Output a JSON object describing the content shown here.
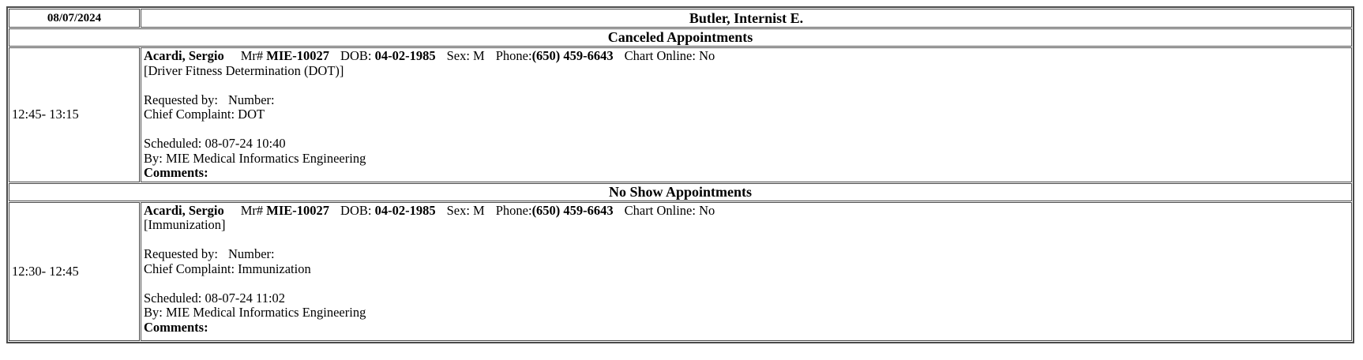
{
  "report": {
    "date": "08/07/2024",
    "provider": "Butler, Internist E.",
    "sections": [
      {
        "title": "Canceled Appointments",
        "appointments": [
          {
            "time": "12:45- 13:15",
            "patient": {
              "name": "Acardi, Sergio",
              "mr_label": "Mr#",
              "mr_value": "MIE-10027",
              "dob_label": "DOB:",
              "dob_value": "04-02-1985",
              "sex": "Sex: M",
              "phone_label": "Phone:",
              "phone_value": "(650) 459-6643",
              "chart_online": "Chart Online: No"
            },
            "reason": "[Driver Fitness Determination (DOT)]",
            "requested_by_label": "Requested by:",
            "number_label": "Number:",
            "chief_complaint": "Chief Complaint: DOT",
            "scheduled": "Scheduled: 08-07-24 10:40",
            "scheduled_by": "By: MIE Medical Informatics Engineering",
            "comments_label": "Comments:"
          }
        ]
      },
      {
        "title": "No Show Appointments",
        "appointments": [
          {
            "time": "12:30- 12:45",
            "patient": {
              "name": "Acardi, Sergio",
              "mr_label": "Mr#",
              "mr_value": "MIE-10027",
              "dob_label": "DOB:",
              "dob_value": "04-02-1985",
              "sex": "Sex: M",
              "phone_label": "Phone:",
              "phone_value": "(650) 459-6643",
              "chart_online": "Chart Online: No"
            },
            "reason": "[Immunization]",
            "requested_by_label": "Requested by:",
            "number_label": "Number:",
            "chief_complaint": "Chief Complaint: Immunization",
            "scheduled": "Scheduled: 08-07-24 11:02",
            "scheduled_by": "By: MIE Medical Informatics Engineering",
            "comments_label": "Comments:"
          }
        ]
      }
    ]
  },
  "colors": {
    "border": "#4a4a4a",
    "text": "#000000",
    "background": "#ffffff"
  }
}
